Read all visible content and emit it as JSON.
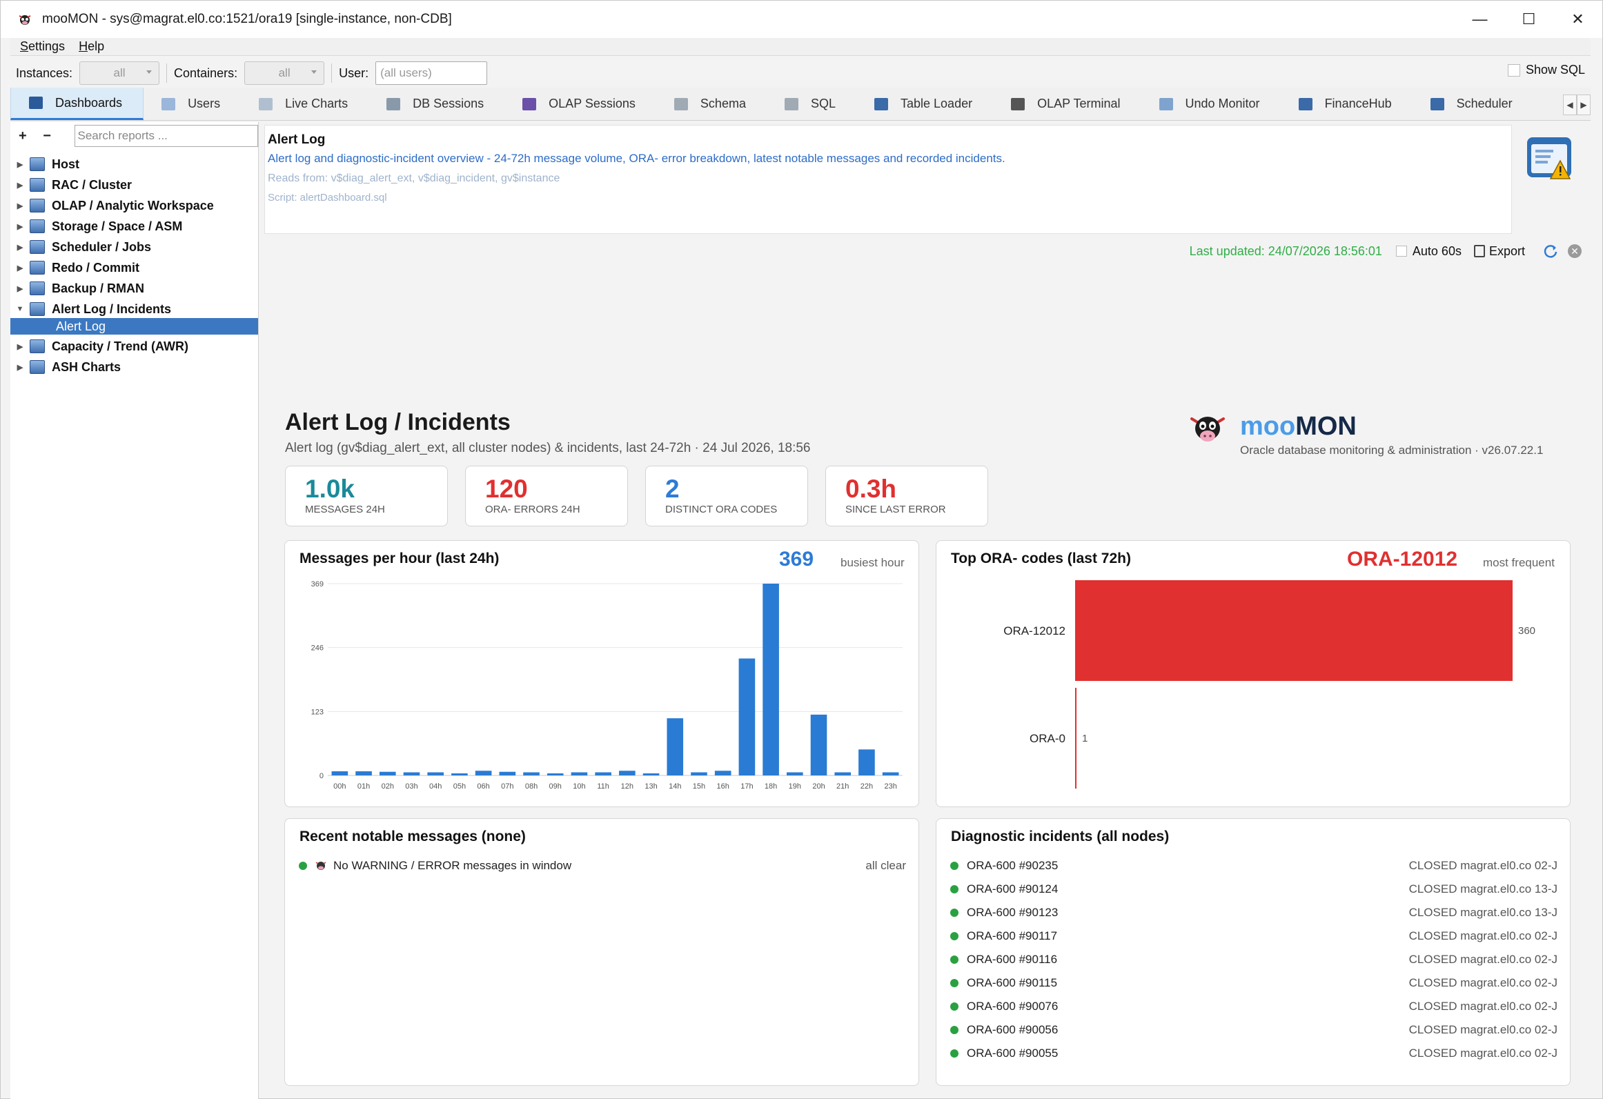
{
  "window": {
    "title": "mooMON - sys@magrat.el0.co:1521/ora19  [single-instance, non-CDB]",
    "minimize": "—",
    "maximize": "☐",
    "close": "✕"
  },
  "menu": [
    "Settings",
    "Help"
  ],
  "filters": {
    "instances_label": "Instances:",
    "instances_value": "all",
    "containers_label": "Containers:",
    "containers_value": "all",
    "user_label": "User:",
    "user_placeholder": "(all users)",
    "show_sql": "Show SQL"
  },
  "tabs": [
    {
      "label": "Dashboards",
      "color": "#2a5a9a"
    },
    {
      "label": "Users",
      "color": "#4a7bc0"
    },
    {
      "label": "Live Charts",
      "color": "#5a7a9a"
    },
    {
      "label": "DB Sessions",
      "color": "#556677"
    },
    {
      "label": "OLAP Sessions",
      "color": "#6b4fa8"
    },
    {
      "label": "Schema",
      "color": "#667788"
    },
    {
      "label": "SQL",
      "color": "#667788"
    },
    {
      "label": "Table Loader",
      "color": "#3a6aa8"
    },
    {
      "label": "OLAP Terminal",
      "color": "#555555"
    },
    {
      "label": "Undo Monitor",
      "color": "#4a7bc0"
    },
    {
      "label": "FinanceHub",
      "color": "#3a6aa8"
    },
    {
      "label": "Scheduler",
      "color": "#3a6aa8"
    }
  ],
  "sidebar": {
    "add": "+",
    "remove": "−",
    "search_placeholder": "Search reports ...",
    "nodes": [
      {
        "label": "Host",
        "expanded": false
      },
      {
        "label": "RAC / Cluster",
        "expanded": false
      },
      {
        "label": "OLAP / Analytic Workspace",
        "expanded": false
      },
      {
        "label": "Storage / Space / ASM",
        "expanded": false
      },
      {
        "label": "Scheduler / Jobs",
        "expanded": false
      },
      {
        "label": "Redo / Commit",
        "expanded": false
      },
      {
        "label": "Backup / RMAN",
        "expanded": false
      },
      {
        "label": "Alert Log / Incidents",
        "expanded": true
      },
      {
        "label": "Capacity / Trend (AWR)",
        "expanded": false
      },
      {
        "label": "ASH Charts",
        "expanded": false
      }
    ],
    "selected_leaf": "Alert Log"
  },
  "header": {
    "title": "Alert Log",
    "description": "Alert log and diagnostic-incident overview - 24-72h message volume, ORA- error breakdown, latest notable messages and recorded incidents.",
    "reads": "Reads from: v$diag_alert_ext, v$diag_incident, gv$instance",
    "script": "Script: alertDashboard.sql"
  },
  "status": {
    "updated": "Last updated: 24/07/2026 18:56:01",
    "auto": "Auto 60s",
    "export": "Export"
  },
  "dashboard": {
    "title": "Alert Log / Incidents",
    "subtitle": "Alert log (gv$diag_alert_ext, all cluster nodes) & incidents, last 24-72h · 24 Jul 2026, 18:56",
    "brand_moo": "moo",
    "brand_mon": "MON",
    "brand_tag": "Oracle database monitoring & administration · v26.07.22.1"
  },
  "kpis": [
    {
      "value": "1.0k",
      "label": "MESSAGES 24H",
      "color": "#1a8a9a"
    },
    {
      "value": "120",
      "label": "ORA- ERRORS 24H",
      "color": "#e03030"
    },
    {
      "value": "2",
      "label": "DISTINCT ORA CODES",
      "color": "#2d7bd6"
    },
    {
      "value": "0.3h",
      "label": "SINCE LAST ERROR",
      "color": "#e03030"
    }
  ],
  "messages_chart": {
    "title": "Messages per hour (last 24h)",
    "big": "369",
    "note": "busiest hour"
  },
  "codes_chart": {
    "title": "Top ORA- codes (last 72h)",
    "big": "ORA-12012",
    "note": "most frequent"
  },
  "recent": {
    "title": "Recent notable messages (none)",
    "message": "No WARNING / ERROR messages in window",
    "status": "all clear"
  },
  "incidents": {
    "title": "Diagnostic incidents (all nodes)",
    "rows": [
      {
        "id": "ORA-600 #90235",
        "detail": "CLOSED magrat.el0.co 02-J"
      },
      {
        "id": "ORA-600 #90124",
        "detail": "CLOSED magrat.el0.co 13-J"
      },
      {
        "id": "ORA-600 #90123",
        "detail": "CLOSED magrat.el0.co 13-J"
      },
      {
        "id": "ORA-600 #90117",
        "detail": "CLOSED magrat.el0.co 02-J"
      },
      {
        "id": "ORA-600 #90116",
        "detail": "CLOSED magrat.el0.co 02-J"
      },
      {
        "id": "ORA-600 #90115",
        "detail": "CLOSED magrat.el0.co 02-J"
      },
      {
        "id": "ORA-600 #90076",
        "detail": "CLOSED magrat.el0.co 02-J"
      },
      {
        "id": "ORA-600 #90056",
        "detail": "CLOSED magrat.el0.co 02-J"
      },
      {
        "id": "ORA-600 #90055",
        "detail": "CLOSED magrat.el0.co 02-J"
      }
    ]
  },
  "chart_data": [
    {
      "type": "bar",
      "title": "Messages per hour (last 24h)",
      "categories": [
        "00h",
        "01h",
        "02h",
        "03h",
        "04h",
        "05h",
        "06h",
        "07h",
        "08h",
        "09h",
        "10h",
        "11h",
        "12h",
        "13h",
        "14h",
        "15h",
        "16h",
        "17h",
        "18h",
        "19h",
        "20h",
        "21h",
        "22h",
        "23h"
      ],
      "values": [
        8,
        8,
        7,
        6,
        6,
        4,
        9,
        7,
        6,
        4,
        6,
        6,
        9,
        4,
        110,
        6,
        9,
        225,
        369,
        6,
        117,
        6,
        50,
        6
      ],
      "yticks": [
        0,
        123,
        246,
        369
      ],
      "ylim": [
        0,
        369
      ],
      "color": "#2a7bd3",
      "grid": true
    },
    {
      "type": "bar",
      "orientation": "horizontal",
      "title": "Top ORA- codes (last 72h)",
      "categories": [
        "ORA-12012",
        "ORA-0"
      ],
      "values": [
        360,
        1
      ],
      "color": "#e03030"
    }
  ]
}
